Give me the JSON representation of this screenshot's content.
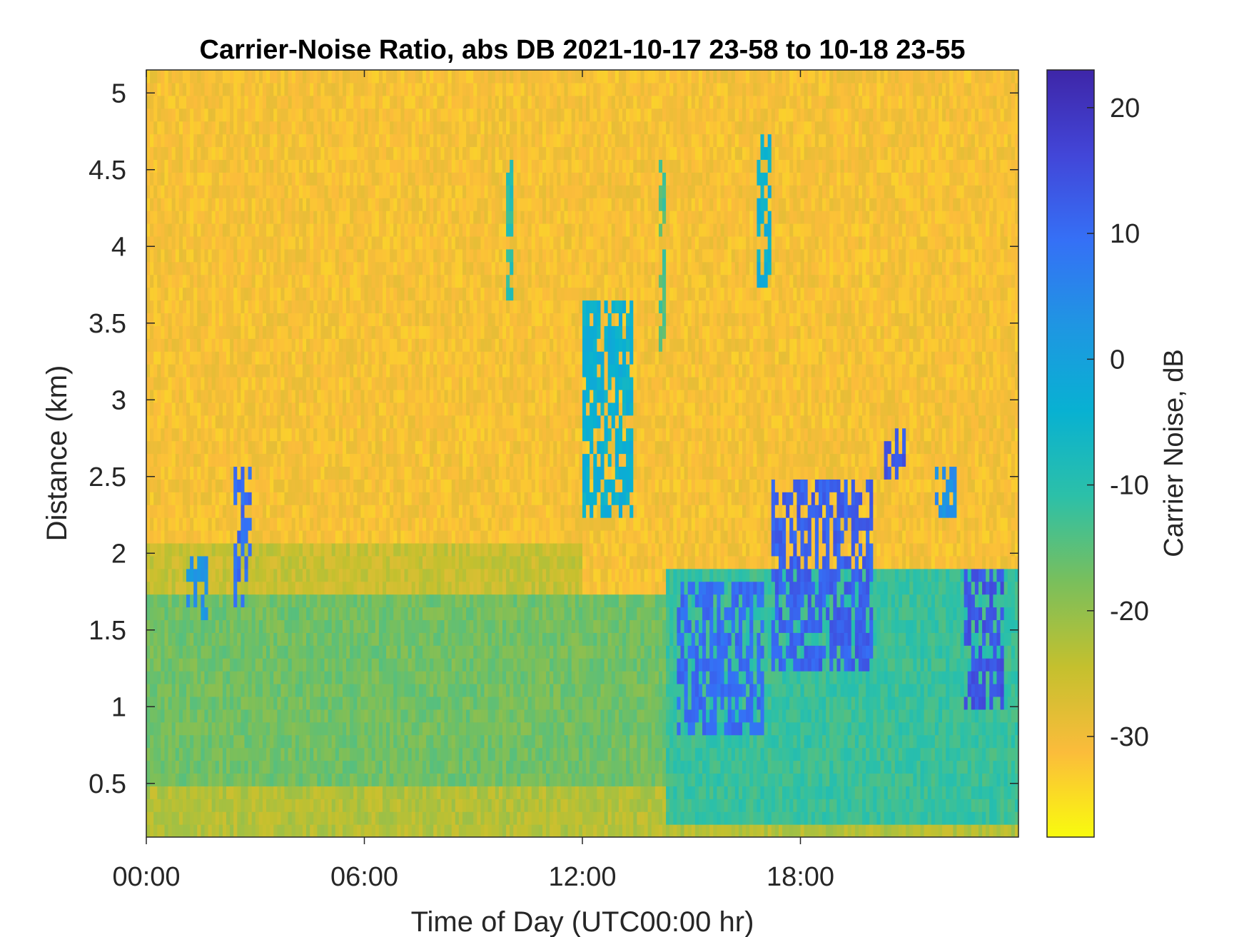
{
  "chart_data": {
    "type": "heatmap",
    "title": "Carrier-Noise Ratio, abs DB 2021-10-17 23-58 to 10-18 23-55",
    "xlabel": "Time of Day (UTC00:00 hr)",
    "ylabel": "Distance (km)",
    "colorbar_label": "Carrier Noise, dB",
    "xlim": [
      0,
      24
    ],
    "ylim": [
      0.15,
      5.15
    ],
    "clim": [
      -38,
      23
    ],
    "x_ticks": [
      {
        "value": 0,
        "label": "00:00"
      },
      {
        "value": 6,
        "label": "06:00"
      },
      {
        "value": 12,
        "label": "12:00"
      },
      {
        "value": 18,
        "label": "18:00"
      }
    ],
    "y_ticks": [
      {
        "value": 0.5,
        "label": "0.5"
      },
      {
        "value": 1,
        "label": "1"
      },
      {
        "value": 1.5,
        "label": "1.5"
      },
      {
        "value": 2,
        "label": "2"
      },
      {
        "value": 2.5,
        "label": "2.5"
      },
      {
        "value": 3,
        "label": "3"
      },
      {
        "value": 3.5,
        "label": "3.5"
      },
      {
        "value": 4,
        "label": "4"
      },
      {
        "value": 4.5,
        "label": "4.5"
      },
      {
        "value": 5,
        "label": "5"
      }
    ],
    "colorbar_ticks": [
      {
        "value": 20,
        "label": "20"
      },
      {
        "value": 10,
        "label": "10"
      },
      {
        "value": 0,
        "label": "0"
      },
      {
        "value": -10,
        "label": "-10"
      },
      {
        "value": -20,
        "label": "-20"
      },
      {
        "value": -30,
        "label": "-30"
      }
    ],
    "colormap": [
      "#f9fb0e",
      "#fbbc3b",
      "#c4c02e",
      "#79bf5c",
      "#2cc0a8",
      "#08b1d2",
      "#1f96e2",
      "#3570f6",
      "#4246d8",
      "#3e26a8"
    ],
    "background_value": -31,
    "features": [
      {
        "name": "near-surface layer",
        "x": [
          0,
          14.5
        ],
        "y": [
          0.15,
          1.75
        ],
        "value": -17
      },
      {
        "name": "lower transition",
        "x": [
          0,
          24
        ],
        "y": [
          0.15,
          0.45
        ],
        "value": -23
      },
      {
        "name": "boundary-layer top",
        "x": [
          0,
          12
        ],
        "y": [
          1.75,
          2.05
        ],
        "value": -25
      },
      {
        "name": "afternoon layer",
        "x": [
          14.3,
          24
        ],
        "y": [
          0.2,
          1.9
        ],
        "value": -12
      },
      {
        "name": "cloud 12-13h",
        "x": [
          12.0,
          13.4
        ],
        "y": [
          2.2,
          3.65
        ],
        "value": -4
      },
      {
        "name": "cloud 1h",
        "x": [
          1.1,
          1.7
        ],
        "y": [
          1.55,
          1.95
        ],
        "value": 3
      },
      {
        "name": "cloud 2.5h",
        "x": [
          2.4,
          2.9
        ],
        "y": [
          1.65,
          2.55
        ],
        "value": 10
      },
      {
        "name": "streak 10h",
        "x": [
          9.9,
          10.1
        ],
        "y": [
          3.65,
          4.6
        ],
        "value": -10
      },
      {
        "name": "streak 14h",
        "x": [
          14.1,
          14.3
        ],
        "y": [
          3.3,
          4.55
        ],
        "value": -14
      },
      {
        "name": "streak 17h",
        "x": [
          16.8,
          17.2
        ],
        "y": [
          3.7,
          4.75
        ],
        "value": -4
      },
      {
        "name": "cells 15-17h",
        "x": [
          14.6,
          17.0
        ],
        "y": [
          0.8,
          1.85
        ],
        "value": 10
      },
      {
        "name": "cells 17-20h",
        "x": [
          17.2,
          20.0
        ],
        "y": [
          1.2,
          2.45
        ],
        "value": 12
      },
      {
        "name": "cloud 20.5h",
        "x": [
          20.3,
          20.9
        ],
        "y": [
          2.45,
          2.85
        ],
        "value": 14
      },
      {
        "name": "cloud 22h",
        "x": [
          21.7,
          22.3
        ],
        "y": [
          2.2,
          2.55
        ],
        "value": 4
      },
      {
        "name": "cells 22-23.5h",
        "x": [
          22.5,
          23.6
        ],
        "y": [
          1.0,
          1.9
        ],
        "value": 14
      }
    ]
  }
}
